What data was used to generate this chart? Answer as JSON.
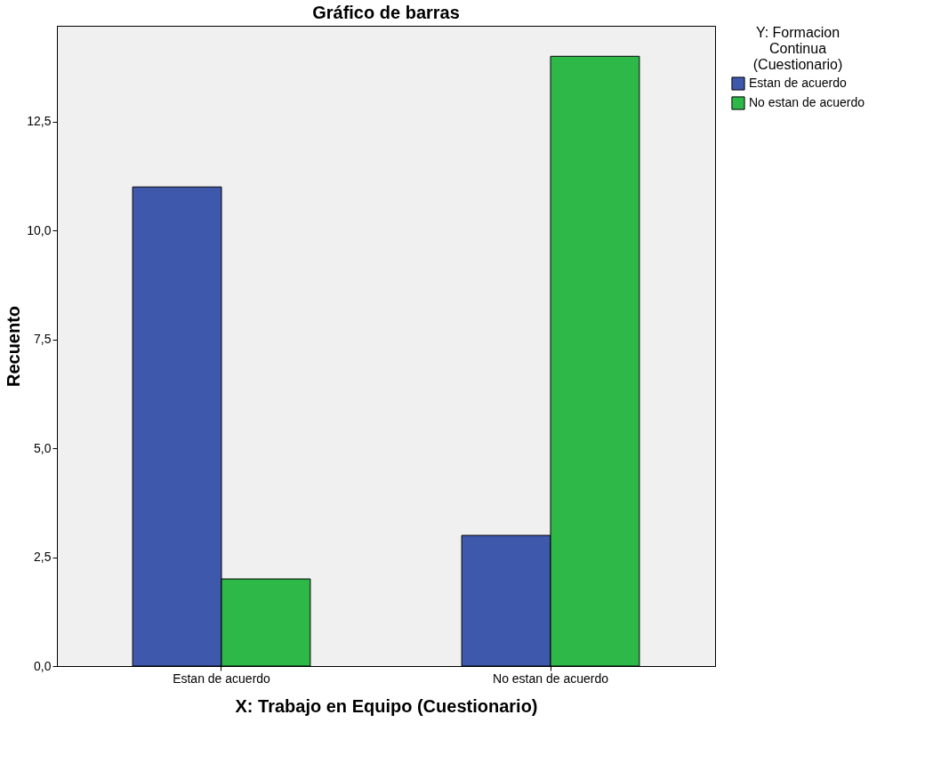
{
  "chart_data": {
    "type": "bar",
    "title": "Gráfico de barras",
    "xlabel": "X: Trabajo en Equipo (Cuestionario)",
    "ylabel": "Recuento",
    "legend_title": "Y: Formacion Continua (Cuestionario)",
    "categories": [
      "Estan de acuerdo",
      "No estan de acuerdo"
    ],
    "series": [
      {
        "name": "Estan de acuerdo",
        "color": "#3e58ac",
        "values": [
          11,
          3
        ]
      },
      {
        "name": "No estan de acuerdo",
        "color": "#2eb848",
        "values": [
          2,
          14
        ]
      }
    ],
    "ylim": [
      0,
      14.7
    ],
    "yticks": [
      {
        "value": 0,
        "label": "0,0"
      },
      {
        "value": 2.5,
        "label": "2,5"
      },
      {
        "value": 5,
        "label": "5,0"
      },
      {
        "value": 7.5,
        "label": "7,5"
      },
      {
        "value": 10,
        "label": "10,0"
      },
      {
        "value": 12.5,
        "label": "12,5"
      }
    ],
    "grid": false,
    "legend": "top right"
  }
}
